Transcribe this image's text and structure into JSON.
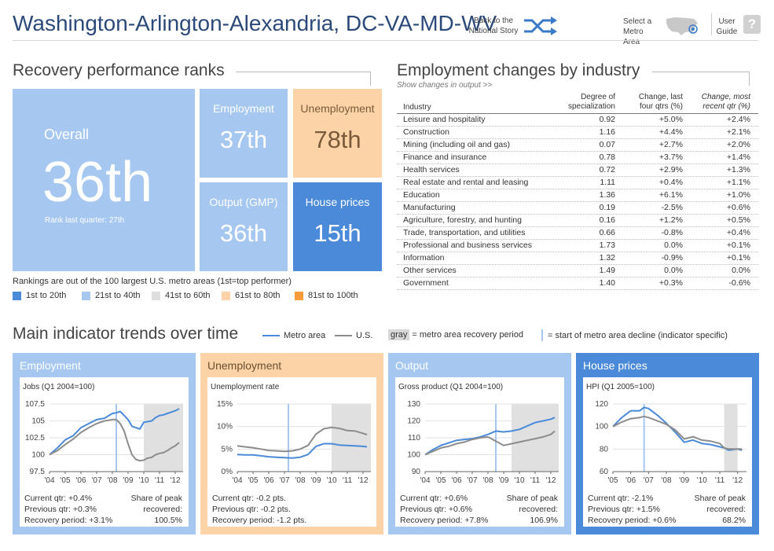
{
  "header": {
    "title": "Washington-Arlington-Alexandria, DC-VA-MD-WV",
    "back_line1": "Back to the",
    "back_line2": "National Story",
    "select_line1": "Select a",
    "select_line2": "Metro Area",
    "guide_line1": "User",
    "guide_line2": "Guide",
    "help_glyph": "?"
  },
  "ranks": {
    "title": "Recovery performance ranks",
    "overall_label": "Overall",
    "overall_value": "36th",
    "last_quarter": "Rank last quarter: 27th",
    "employment_label": "Employment",
    "employment_value": "37th",
    "unemployment_label": "Unemployment",
    "unemployment_value": "78th",
    "output_label": "Output (GMP)",
    "output_value": "36th",
    "house_label": "House prices",
    "house_value": "15th",
    "note": "Rankings are out of the 100 largest U.S. metro areas (1st=top performer)",
    "legend": [
      {
        "label": "1st to 20th",
        "color": "#4a8ad8"
      },
      {
        "label": "21st to 40th",
        "color": "#a6c8f0"
      },
      {
        "label": "41st to 60th",
        "color": "#dedede"
      },
      {
        "label": "61st to 80th",
        "color": "#fcd3a6"
      },
      {
        "label": "81st to 100th",
        "color": "#f79a3a"
      }
    ]
  },
  "industry": {
    "title": "Employment changes by industry",
    "show_output": "Show changes in output >>",
    "headers": {
      "industry": "Industry",
      "deg1": "Degree of",
      "deg2": "specialization",
      "chg1": "Change, last",
      "chg2": "four qtrs (%)",
      "rec1": "Change, most",
      "rec2": "recent qtr (%)"
    },
    "rows": [
      {
        "name": "Leisure and hospitality",
        "deg": "0.92",
        "chg": "+5.0%",
        "rec": "+2.4%"
      },
      {
        "name": "Construction",
        "deg": "1.16",
        "chg": "+4.4%",
        "rec": "+2.1%"
      },
      {
        "name": "Mining (including oil and gas)",
        "deg": "0.07",
        "chg": "+2.7%",
        "rec": "+2.0%"
      },
      {
        "name": "Finance and insurance",
        "deg": "0.78",
        "chg": "+3.7%",
        "rec": "+1.4%"
      },
      {
        "name": "Health services",
        "deg": "0.72",
        "chg": "+2.9%",
        "rec": "+1.3%"
      },
      {
        "name": "Real estate and rental and leasing",
        "deg": "1.11",
        "chg": "+0.4%",
        "rec": "+1.1%"
      },
      {
        "name": "Education",
        "deg": "1.36",
        "chg": "+6.1%",
        "rec": "+1.0%"
      },
      {
        "name": "Manufacturing",
        "deg": "0.19",
        "chg": "-2.5%",
        "rec": "+0.6%"
      },
      {
        "name": "Agriculture, forestry, and hunting",
        "deg": "0.16",
        "chg": "+1.2%",
        "rec": "+0.5%"
      },
      {
        "name": "Trade, transportation, and utilities",
        "deg": "0.66",
        "chg": "-0.8%",
        "rec": "+0.4%"
      },
      {
        "name": "Professional and business services",
        "deg": "1.73",
        "chg": "0.0%",
        "rec": "+0.1%"
      },
      {
        "name": "Information",
        "deg": "1.32",
        "chg": "-0.9%",
        "rec": "+0.1%"
      },
      {
        "name": "Other services",
        "deg": "1.49",
        "chg": "0.0%",
        "rec": "0.0%"
      },
      {
        "name": "Government",
        "deg": "1.40",
        "chg": "+0.3%",
        "rec": "-0.6%"
      }
    ]
  },
  "trends": {
    "title": "Main indicator trends over time",
    "legend_metro": "Metro area",
    "legend_us": "U.S.",
    "legend_gray": "gray",
    "legend_gray_text": "= metro area recovery period",
    "legend_decline": "= start of metro area decline (indicator specific)",
    "colors": {
      "metro": "#4a8ad8",
      "us": "#8c8c8c",
      "recovery": "#e0e0e0",
      "decline": "#a6c8f0"
    }
  },
  "chart_data": [
    {
      "type": "line",
      "panel": "Employment",
      "title": "Jobs (Q1 2004=100)",
      "xlim": [
        2004,
        2012.5
      ],
      "ylim": [
        97.5,
        107.5
      ],
      "yticks": [
        97.5,
        100,
        102.5,
        105,
        107.5
      ],
      "ytick_labels": [
        "97.5",
        "100",
        "102.5",
        "105",
        "107.5"
      ],
      "xtick_labels": [
        "'04",
        "'05",
        "'06",
        "'07",
        "'08",
        "'09",
        "'10",
        "'11",
        "'12"
      ],
      "decline_start": 2008.25,
      "recovery": [
        2010.0,
        2012.5
      ],
      "series": [
        {
          "name": "Metro area",
          "x": [
            2004,
            2004.5,
            2005,
            2005.5,
            2006,
            2006.5,
            2007,
            2007.5,
            2008,
            2008.25,
            2008.5,
            2008.75,
            2009,
            2009.25,
            2009.5,
            2009.75,
            2010,
            2010.25,
            2010.5,
            2010.75,
            2011,
            2011.25,
            2011.5,
            2011.75,
            2012,
            2012.25
          ],
          "values": [
            100,
            101,
            102.2,
            102.8,
            104,
            104.6,
            105.2,
            105.4,
            106.1,
            106.2,
            106.4,
            105.8,
            105.2,
            104.2,
            104.0,
            103.8,
            104.8,
            104.9,
            105.0,
            105.5,
            105.8,
            105.9,
            106.1,
            106.3,
            106.5,
            106.8
          ]
        },
        {
          "name": "U.S.",
          "x": [
            2004,
            2004.5,
            2005,
            2005.5,
            2006,
            2006.5,
            2007,
            2007.5,
            2008,
            2008.25,
            2008.5,
            2008.75,
            2009,
            2009.25,
            2009.5,
            2009.75,
            2010,
            2010.25,
            2010.5,
            2010.75,
            2011,
            2011.25,
            2011.5,
            2011.75,
            2012,
            2012.25
          ],
          "values": [
            100,
            100.6,
            101.5,
            102.3,
            103.3,
            104.0,
            104.6,
            105.0,
            105.2,
            105.2,
            104.6,
            103.5,
            101.6,
            100.0,
            99.3,
            99.1,
            99.2,
            99.5,
            99.6,
            100.0,
            100.2,
            100.3,
            100.6,
            101.0,
            101.3,
            101.8
          ]
        }
      ],
      "stats": {
        "current": "Current qtr: +0.4%",
        "previous": "Previous qtr: +0.3%",
        "recovery": "Recovery period: +3.1%",
        "share1": "Share of peak",
        "share2": "recovered:",
        "share_value": "100.5%"
      }
    },
    {
      "type": "line",
      "panel": "Unemployment",
      "title": "Unemployment rate",
      "xlim": [
        2004,
        2012.5
      ],
      "ylim": [
        0,
        15
      ],
      "yticks": [
        0,
        5,
        10,
        15
      ],
      "ytick_labels": [
        "0%",
        "5%",
        "10%",
        "15%"
      ],
      "xtick_labels": [
        "'04",
        "'05",
        "'06",
        "'07",
        "'08",
        "'09",
        "'10",
        "'11",
        "'12"
      ],
      "decline_start": 2007.25,
      "recovery": [
        2010.0,
        2012.5
      ],
      "series": [
        {
          "name": "Metro area",
          "x": [
            2004,
            2004.5,
            2005,
            2005.5,
            2006,
            2006.5,
            2007,
            2007.5,
            2008,
            2008.5,
            2009,
            2009.5,
            2010,
            2010.5,
            2011,
            2011.5,
            2012,
            2012.25
          ],
          "values": [
            3.8,
            3.7,
            3.7,
            3.5,
            3.3,
            3.2,
            3.1,
            3.0,
            3.2,
            3.8,
            5.6,
            6.2,
            6.2,
            5.9,
            5.8,
            5.7,
            5.6,
            5.5
          ]
        },
        {
          "name": "U.S.",
          "x": [
            2004,
            2004.5,
            2005,
            2005.5,
            2006,
            2006.5,
            2007,
            2007.5,
            2008,
            2008.5,
            2009,
            2009.5,
            2010,
            2010.5,
            2011,
            2011.5,
            2012,
            2012.25
          ],
          "values": [
            5.7,
            5.5,
            5.3,
            5.0,
            4.7,
            4.6,
            4.5,
            4.6,
            5.0,
            5.8,
            8.3,
            9.5,
            9.8,
            9.6,
            9.1,
            9.0,
            8.5,
            8.2
          ]
        }
      ],
      "stats": {
        "current": "Current qtr: -0.2 pts.",
        "previous": "Previous qtr: -0.2 pts.",
        "recovery": "Recovery period: -1.2 pts.",
        "share1": "",
        "share2": "",
        "share_value": ""
      }
    },
    {
      "type": "line",
      "panel": "Output",
      "title": "Gross product (Q1 2004=100)",
      "xlim": [
        2004,
        2012.5
      ],
      "ylim": [
        90,
        130
      ],
      "yticks": [
        90,
        100,
        110,
        120,
        130
      ],
      "ytick_labels": [
        "90",
        "100",
        "110",
        "120",
        "130"
      ],
      "xtick_labels": [
        "'04",
        "'05",
        "'06",
        "'07",
        "'08",
        "'09",
        "'10",
        "'11",
        "'12"
      ],
      "decline_start": 2008.5,
      "recovery": [
        2009.5,
        2012.5
      ],
      "series": [
        {
          "name": "Metro area",
          "x": [
            2004,
            2004.5,
            2005,
            2005.5,
            2006,
            2006.5,
            2007,
            2007.5,
            2008,
            2008.5,
            2009,
            2009.5,
            2010,
            2010.5,
            2011,
            2011.5,
            2012,
            2012.25
          ],
          "values": [
            100,
            103,
            105.5,
            107,
            108.5,
            109,
            109.5,
            110.5,
            112,
            114,
            113.5,
            114,
            115,
            117,
            119,
            120,
            121,
            122
          ]
        },
        {
          "name": "U.S.",
          "x": [
            2004,
            2004.5,
            2005,
            2005.5,
            2006,
            2006.5,
            2007,
            2007.5,
            2008,
            2008.5,
            2009,
            2009.5,
            2010,
            2010.5,
            2011,
            2011.5,
            2012,
            2012.25
          ],
          "values": [
            100,
            102,
            104,
            105,
            106.5,
            107.5,
            109,
            110,
            110.5,
            108,
            105.5,
            106.5,
            107.5,
            108.5,
            109.5,
            110.5,
            112,
            114
          ]
        }
      ],
      "stats": {
        "current": "Current qtr: +0.6%",
        "previous": "Previous qtr: +0.6%",
        "recovery": "Recovery period: +7.8%",
        "share1": "Share of peak",
        "share2": "recovered:",
        "share_value": "106.9%"
      }
    },
    {
      "type": "line",
      "panel": "House prices",
      "title": "HPI (Q1 2005=100)",
      "xlim": [
        2005,
        2012.5
      ],
      "ylim": [
        60,
        120
      ],
      "yticks": [
        60,
        80,
        100,
        120
      ],
      "ytick_labels": [
        "60",
        "80",
        "100",
        "120"
      ],
      "xtick_labels": [
        "'05",
        "'06",
        "'07",
        "'08",
        "'09",
        "'10",
        "'11",
        "'12"
      ],
      "decline_start": 2006.75,
      "recovery": [
        2011.25,
        2012.0
      ],
      "series": [
        {
          "name": "Metro area",
          "x": [
            2005,
            2005.5,
            2006,
            2006.5,
            2006.75,
            2007,
            2007.5,
            2008,
            2008.5,
            2009,
            2009.5,
            2010,
            2010.5,
            2011,
            2011.25,
            2011.5,
            2012,
            2012.25
          ],
          "values": [
            100,
            108,
            114,
            114,
            117,
            116,
            110,
            103,
            95,
            86,
            88,
            85,
            84,
            82,
            81,
            79,
            80,
            79
          ]
        },
        {
          "name": "U.S.",
          "x": [
            2005,
            2005.5,
            2006,
            2006.5,
            2006.75,
            2007,
            2007.5,
            2008,
            2008.5,
            2009,
            2009.5,
            2010,
            2010.5,
            2011,
            2011.25,
            2011.5,
            2012,
            2012.25
          ],
          "values": [
            100,
            104,
            107,
            108,
            109,
            108,
            105,
            102,
            97,
            89,
            91,
            88,
            87,
            85,
            81,
            80,
            80,
            80
          ]
        }
      ],
      "stats": {
        "current": "Current qtr: -2.1%",
        "previous": "Previous qtr: +1.5%",
        "recovery": "Recovery period: +0.6%",
        "share1": "Share of peak",
        "share2": "recovered:",
        "share_value": "68.2%"
      }
    }
  ]
}
